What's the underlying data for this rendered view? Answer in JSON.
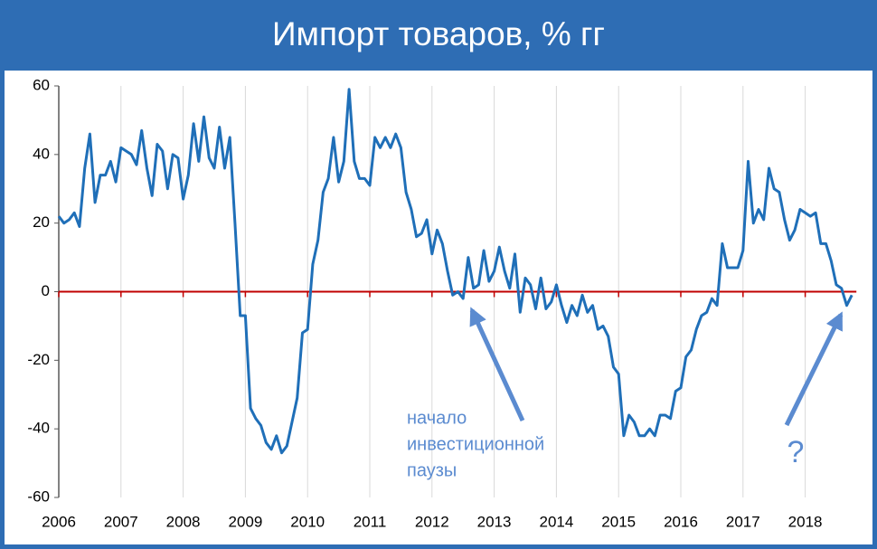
{
  "chart_data": {
    "type": "line",
    "title": "Импорт товаров, % гг",
    "categories": [
      "2006",
      null,
      null,
      null,
      null,
      null,
      null,
      null,
      null,
      null,
      null,
      null,
      "2007",
      null,
      null,
      null,
      null,
      null,
      null,
      null,
      null,
      null,
      null,
      null,
      "2008",
      null,
      null,
      null,
      null,
      null,
      null,
      null,
      null,
      null,
      null,
      null,
      "2009",
      null,
      null,
      null,
      null,
      null,
      null,
      null,
      null,
      null,
      null,
      null,
      "2010",
      null,
      null,
      null,
      null,
      null,
      null,
      null,
      null,
      null,
      null,
      null,
      "2011",
      null,
      null,
      null,
      null,
      null,
      null,
      null,
      null,
      null,
      null,
      null,
      "2012",
      null,
      null,
      null,
      null,
      null,
      null,
      null,
      null,
      null,
      null,
      null,
      "2013",
      null,
      null,
      null,
      null,
      null,
      null,
      null,
      null,
      null,
      null,
      null,
      "2014",
      null,
      null,
      null,
      null,
      null,
      null,
      null,
      null,
      null,
      null,
      null,
      "2015",
      null,
      null,
      null,
      null,
      null,
      null,
      null,
      null,
      null,
      null,
      null,
      "2016",
      null,
      null,
      null,
      null,
      null,
      null,
      null,
      null,
      null,
      null,
      null,
      "2017",
      null,
      null,
      null,
      null,
      null,
      null,
      null,
      null,
      null,
      null,
      null,
      "2018",
      null,
      null,
      null,
      null,
      null,
      null,
      null,
      null,
      null
    ],
    "series": [
      {
        "color": "#1f6fb8",
        "values": [
          22,
          20,
          21,
          23,
          19,
          36,
          46,
          26,
          34,
          34,
          38,
          32,
          42,
          41,
          40,
          37,
          47,
          36,
          28,
          43,
          41,
          30,
          40,
          39,
          27,
          34,
          49,
          38,
          51,
          39,
          36,
          48,
          36,
          45,
          20,
          -7,
          -7,
          -34,
          -37,
          -39,
          -44,
          -46,
          -42,
          -47,
          -45,
          -38,
          -31,
          -12,
          -11,
          8,
          15,
          29,
          33,
          45,
          32,
          38,
          59,
          38,
          33,
          33,
          31,
          45,
          42,
          45,
          42,
          46,
          42,
          29,
          24,
          16,
          17,
          21,
          11,
          18,
          14,
          6,
          -1,
          0,
          -2,
          10,
          1,
          2,
          12,
          3,
          6,
          13,
          6,
          1,
          11,
          -6,
          4,
          2,
          -5,
          4,
          -5,
          -3,
          2,
          -4,
          -9,
          -4,
          -7,
          -1,
          -6,
          -4,
          -11,
          -10,
          -13,
          -22,
          -24,
          -42,
          -36,
          -38,
          -42,
          -42,
          -40,
          -42,
          -36,
          -36,
          -37,
          -29,
          -28,
          -19,
          -17,
          -11,
          -7,
          -6,
          -2,
          -4,
          14,
          7,
          7,
          7,
          12,
          38,
          20,
          24,
          21,
          36,
          30,
          29,
          21,
          15,
          18,
          24,
          23,
          22,
          23,
          14,
          14,
          9,
          2,
          1,
          -4,
          -1
        ]
      }
    ],
    "ylim": [
      -60,
      60
    ],
    "yticks": [
      -60,
      -40,
      -20,
      0,
      20,
      40,
      60
    ],
    "hline": 0,
    "hline_color": "#c00000",
    "grid": true,
    "annotations": [
      {
        "lines": [
          "начало",
          "инвестиционной",
          "паузы"
        ]
      },
      {
        "lines": [
          "?"
        ]
      }
    ]
  }
}
